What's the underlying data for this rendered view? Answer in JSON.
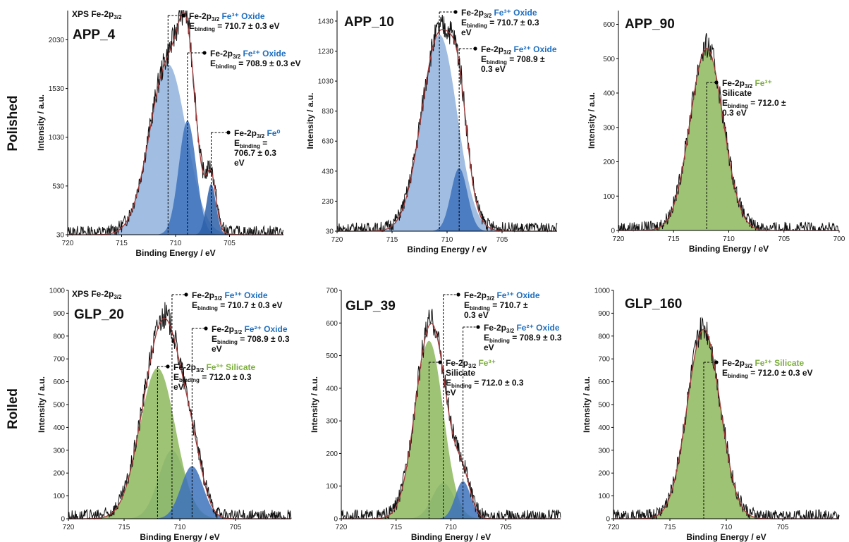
{
  "row_labels": [
    "Polished",
    "Rolled"
  ],
  "colors": {
    "oxide3": "#8aaedb",
    "oxide2": "#3d72bc",
    "fe0": "#2c5fa8",
    "silicate": "#8db85c",
    "envelope": "#a33a3a",
    "raw": "#111111",
    "oxide_text": "#1f6fbf",
    "silicate_text": "#7cae3c"
  },
  "chart_data": [
    {
      "type": "line",
      "title": "APP_4",
      "subtitle": "XPS Fe-2p3/2",
      "xlabel": "Binding Energy / eV",
      "ylabel": "Intensity / a.u.",
      "xlim": [
        720,
        700
      ],
      "ylim": [
        30,
        2330
      ],
      "xticks": [
        720,
        715,
        710,
        705
      ],
      "yticks": [
        30,
        530,
        1030,
        1530,
        2030
      ],
      "grid": false,
      "components": [
        {
          "type": "oxide3",
          "center": 710.7,
          "height": 1750,
          "width": 1.7
        },
        {
          "type": "oxide2",
          "center": 708.9,
          "height": 1170,
          "width": 0.8
        },
        {
          "type": "fe0",
          "center": 706.7,
          "height": 520,
          "width": 0.45
        }
      ],
      "annotations": [
        {
          "line1_prefix": "Fe-2p",
          "line1_sub": "3/2",
          "line1_species": "Fe³⁺ Oxide",
          "species_class": "oxide",
          "lines": [
            "E_binding = 710.7 ± 0.3 eV"
          ],
          "peak": 710.7
        },
        {
          "line1_prefix": "Fe-2p",
          "line1_sub": "3/2",
          "line1_species": "Fe²⁺ Oxide",
          "species_class": "oxide",
          "lines": [
            "E_binding = 708.9 ± 0.3 eV"
          ],
          "peak": 708.9
        },
        {
          "line1_prefix": "Fe-2p",
          "line1_sub": "3/2",
          "line1_species": "Fe⁰",
          "species_class": "oxide",
          "lines": [
            "E_binding =",
            "706.7 ± 0.3",
            "eV"
          ],
          "peak": 706.7
        }
      ]
    },
    {
      "type": "line",
      "title": "APP_10",
      "subtitle": "",
      "xlabel": "Binding Energy / eV",
      "ylabel": "Intensity / a.u.",
      "xlim": [
        720,
        700
      ],
      "ylim": [
        30,
        1500
      ],
      "xticks": [
        720,
        715,
        710,
        705
      ],
      "yticks": [
        30,
        230,
        430,
        630,
        830,
        1030,
        1230,
        1430
      ],
      "grid": false,
      "components": [
        {
          "type": "oxide3",
          "center": 710.7,
          "height": 1310,
          "width": 1.6
        },
        {
          "type": "oxide2",
          "center": 708.9,
          "height": 420,
          "width": 0.75
        }
      ],
      "annotations": [
        {
          "line1_prefix": "Fe-2p",
          "line1_sub": "3/2",
          "line1_species": "Fe³⁺ Oxide",
          "species_class": "oxide",
          "lines": [
            "E_binding = 710.7 ± 0.3",
            "eV"
          ],
          "peak": 710.7
        },
        {
          "line1_prefix": "Fe-2p",
          "line1_sub": "3/2",
          "line1_species": "Fe²⁺ Oxide",
          "species_class": "oxide",
          "lines": [
            "E_binding = 708.9 ±",
            "0.3 eV"
          ],
          "peak": 708.9
        }
      ]
    },
    {
      "type": "line",
      "title": "APP_90",
      "subtitle": "",
      "xlabel": "Binding Energy / eV",
      "ylabel": "Intensity / a.u.",
      "xlim": [
        720,
        700
      ],
      "ylim": [
        0,
        640
      ],
      "xticks": [
        720,
        715,
        710,
        705,
        700
      ],
      "yticks": [
        0,
        100,
        200,
        300,
        400,
        500,
        600
      ],
      "grid": false,
      "components": [
        {
          "type": "silicate",
          "center": 712.0,
          "height": 530,
          "width": 1.5
        }
      ],
      "annotations": [
        {
          "line1_prefix": "Fe-2p",
          "line1_sub": "3/2",
          "line1_species": "Fe³⁺",
          "species_class": "silicate",
          "lines_species2": "Silicate",
          "lines": [
            "E_binding = 712.0 ±",
            "0.3 eV"
          ],
          "peak": 712.0
        }
      ]
    },
    {
      "type": "line",
      "title": "GLP_20",
      "subtitle": "XPS Fe-2p3/2",
      "xlabel": "Binding Energy / eV",
      "ylabel": "Intensity / a.u.",
      "xlim": [
        720,
        700
      ],
      "ylim": [
        0,
        1000
      ],
      "xticks": [
        720,
        715,
        710,
        705
      ],
      "yticks": [
        0,
        100,
        200,
        300,
        400,
        500,
        600,
        700,
        800,
        900,
        1000
      ],
      "grid": false,
      "components": [
        {
          "type": "silicate",
          "center": 712.0,
          "height": 660,
          "width": 1.6
        },
        {
          "type": "oxide3",
          "center": 710.7,
          "height": 300,
          "width": 1.2
        },
        {
          "type": "oxide2",
          "center": 708.9,
          "height": 230,
          "width": 1.0
        }
      ],
      "annotations": [
        {
          "line1_prefix": "Fe-2p",
          "line1_sub": "3/2",
          "line1_species": "Fe³⁺ Oxide",
          "species_class": "oxide",
          "lines": [
            "E_binding = 710.7 ± 0.3 eV"
          ],
          "peak": 710.7
        },
        {
          "line1_prefix": "Fe-2p",
          "line1_sub": "3/2",
          "line1_species": "Fe²⁺ Oxide",
          "species_class": "oxide",
          "lines": [
            "E_binding = 708.9 ± 0.3",
            "eV"
          ],
          "peak": 708.9
        },
        {
          "line1_prefix": "Fe-2p",
          "line1_sub": "3/2",
          "line1_species": "Fe³⁺ Silicate",
          "species_class": "silicate",
          "lines": [
            "E_binding = 712.0 ± 0.3",
            "eV"
          ],
          "peak": 712.0
        }
      ]
    },
    {
      "type": "line",
      "title": "GLP_39",
      "subtitle": "",
      "xlabel": "Binding Energy / eV",
      "ylabel": "Intensity / a.u.",
      "xlim": [
        720,
        700
      ],
      "ylim": [
        0,
        700
      ],
      "xticks": [
        720,
        715,
        710,
        705
      ],
      "yticks": [
        0,
        100,
        200,
        300,
        400,
        500,
        600,
        700
      ],
      "grid": false,
      "components": [
        {
          "type": "silicate",
          "center": 712.0,
          "height": 545,
          "width": 1.3
        },
        {
          "type": "oxide3",
          "center": 710.7,
          "height": 110,
          "width": 1.0
        },
        {
          "type": "oxide2",
          "center": 708.9,
          "height": 115,
          "width": 0.7
        }
      ],
      "annotations": [
        {
          "line1_prefix": "Fe-2p",
          "line1_sub": "3/2",
          "line1_species": "Fe³⁺ Oxide",
          "species_class": "oxide",
          "lines": [
            "E_binding = 710.7 ±",
            "0.3 eV"
          ],
          "peak": 710.7
        },
        {
          "line1_prefix": "Fe-2p",
          "line1_sub": "3/2",
          "line1_species": "Fe²⁺ Oxide",
          "species_class": "oxide",
          "lines": [
            "E_binding = 708.9 ± 0.3",
            "eV"
          ],
          "peak": 708.9
        },
        {
          "line1_prefix": "Fe-2p",
          "line1_sub": "3/2",
          "line1_species": "Fe³⁺",
          "species_class": "silicate",
          "lines_species2": "Silicate",
          "lines": [
            "E_binding = 712.0 ± 0.3",
            "eV"
          ],
          "peak": 712.0
        }
      ]
    },
    {
      "type": "line",
      "title": "GLP_160",
      "subtitle": "",
      "xlabel": "Binding Energy / eV",
      "ylabel": "Intensity / a.u.",
      "xlim": [
        720,
        700
      ],
      "ylim": [
        0,
        1000
      ],
      "xticks": [
        720,
        715,
        710,
        705
      ],
      "yticks": [
        0,
        100,
        200,
        300,
        400,
        500,
        600,
        700,
        800,
        900,
        1000
      ],
      "grid": false,
      "components": [
        {
          "type": "silicate",
          "center": 712.0,
          "height": 830,
          "width": 1.45
        }
      ],
      "annotations": [
        {
          "line1_prefix": "Fe-2p",
          "line1_sub": "3/2",
          "line1_species": "Fe³⁺  Silicate",
          "species_class": "silicate",
          "lines": [
            "E_binding = 712.0 ± 0.3 eV"
          ],
          "peak": 712.0
        }
      ]
    }
  ]
}
